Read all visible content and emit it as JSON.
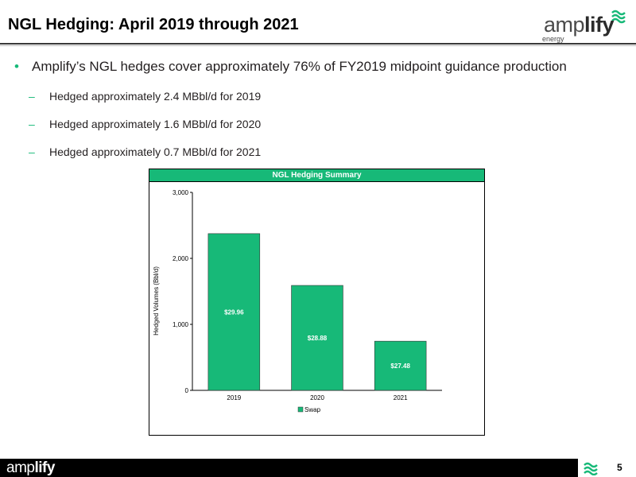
{
  "header": {
    "title": "NGL Hedging: April 2019 through 2021",
    "logo_word_light": "amp",
    "logo_word_bold": "lify",
    "logo_sub": "energy"
  },
  "bullets": {
    "main": "Amplify’s NGL hedges cover approximately 76% of FY2019 midpoint guidance production",
    "subs": [
      "Hedged approximately 2.4 MBbl/d for 2019",
      "Hedged approximately 1.6 MBbl/d for 2020",
      "Hedged approximately 0.7 MBbl/d for 2021"
    ]
  },
  "chart_data": {
    "type": "bar",
    "title": "NGL Hedging Summary",
    "categories": [
      "2019",
      "2020",
      "2021"
    ],
    "series": [
      {
        "name": "Swap",
        "values": [
          2375,
          1590,
          745
        ],
        "labels": [
          "$29.96",
          "$28.88",
          "$27.48"
        ]
      }
    ],
    "ylabel": "Hedged Volumes (Bbl/d)",
    "ylim": [
      0,
      3000
    ],
    "yticks": [
      0,
      1000,
      2000,
      3000
    ],
    "ytick_labels": [
      "0",
      "1,000",
      "2,000",
      "3,000"
    ],
    "grid": false,
    "legend": "bottom",
    "bar_color": "#17b978"
  },
  "footer": {
    "logo_word_light": "amp",
    "logo_word_bold": "lify",
    "page_number": "5"
  },
  "colors": {
    "accent": "#17b978",
    "header_rule": "#3a3a3a",
    "footer_bar": "#000000"
  }
}
